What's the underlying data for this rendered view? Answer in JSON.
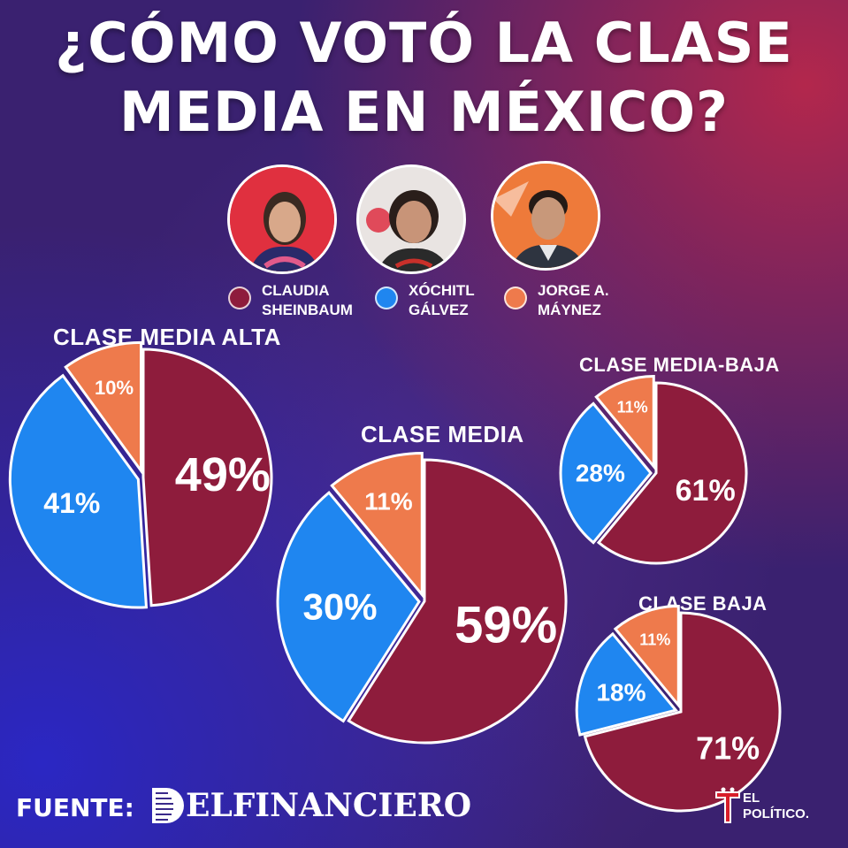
{
  "title": {
    "line1": "¿CÓMO VOTÓ LA CLASE",
    "line2": "MEDIA EN MÉXICO?"
  },
  "candidates": [
    {
      "name": "CLAUDIA\nSHEINBAUM",
      "color": "#8e1c3c"
    },
    {
      "name": "XÓCHITL\nGÁLVEZ",
      "color": "#1f86f0"
    },
    {
      "name": "JORGE A.\nMÁYNEZ",
      "color": "#ee7a4c"
    }
  ],
  "chart_data": [
    {
      "type": "pie",
      "title": "CLASE MEDIA ALTA",
      "categories": [
        "CLAUDIA SHEINBAUM",
        "XÓCHITL GÁLVEZ",
        "JORGE A. MÁYNEZ"
      ],
      "values": [
        49,
        41,
        10
      ],
      "labels": [
        "49%",
        "41%",
        "10%"
      ]
    },
    {
      "type": "pie",
      "title": "CLASE MEDIA",
      "categories": [
        "CLAUDIA SHEINBAUM",
        "XÓCHITL GÁLVEZ",
        "JORGE A. MÁYNEZ"
      ],
      "values": [
        59,
        30,
        11
      ],
      "labels": [
        "59%",
        "30%",
        "11%"
      ]
    },
    {
      "type": "pie",
      "title": "CLASE MEDIA-BAJA",
      "categories": [
        "CLAUDIA SHEINBAUM",
        "XÓCHITL GÁLVEZ",
        "JORGE A. MÁYNEZ"
      ],
      "values": [
        61,
        28,
        11
      ],
      "labels": [
        "61%",
        "28%",
        "11%"
      ]
    },
    {
      "type": "pie",
      "title": "CLASE BAJA",
      "categories": [
        "CLAUDIA SHEINBAUM",
        "XÓCHITL GÁLVEZ",
        "JORGE A. MÁYNEZ"
      ],
      "values": [
        71,
        18,
        11
      ],
      "labels": [
        "71%",
        "18%",
        "11%"
      ]
    }
  ],
  "footer": {
    "source_label": "FUENTE:",
    "source_name": "ELFINANCIERO",
    "publisher": "EL\nPOLÍTICO."
  }
}
